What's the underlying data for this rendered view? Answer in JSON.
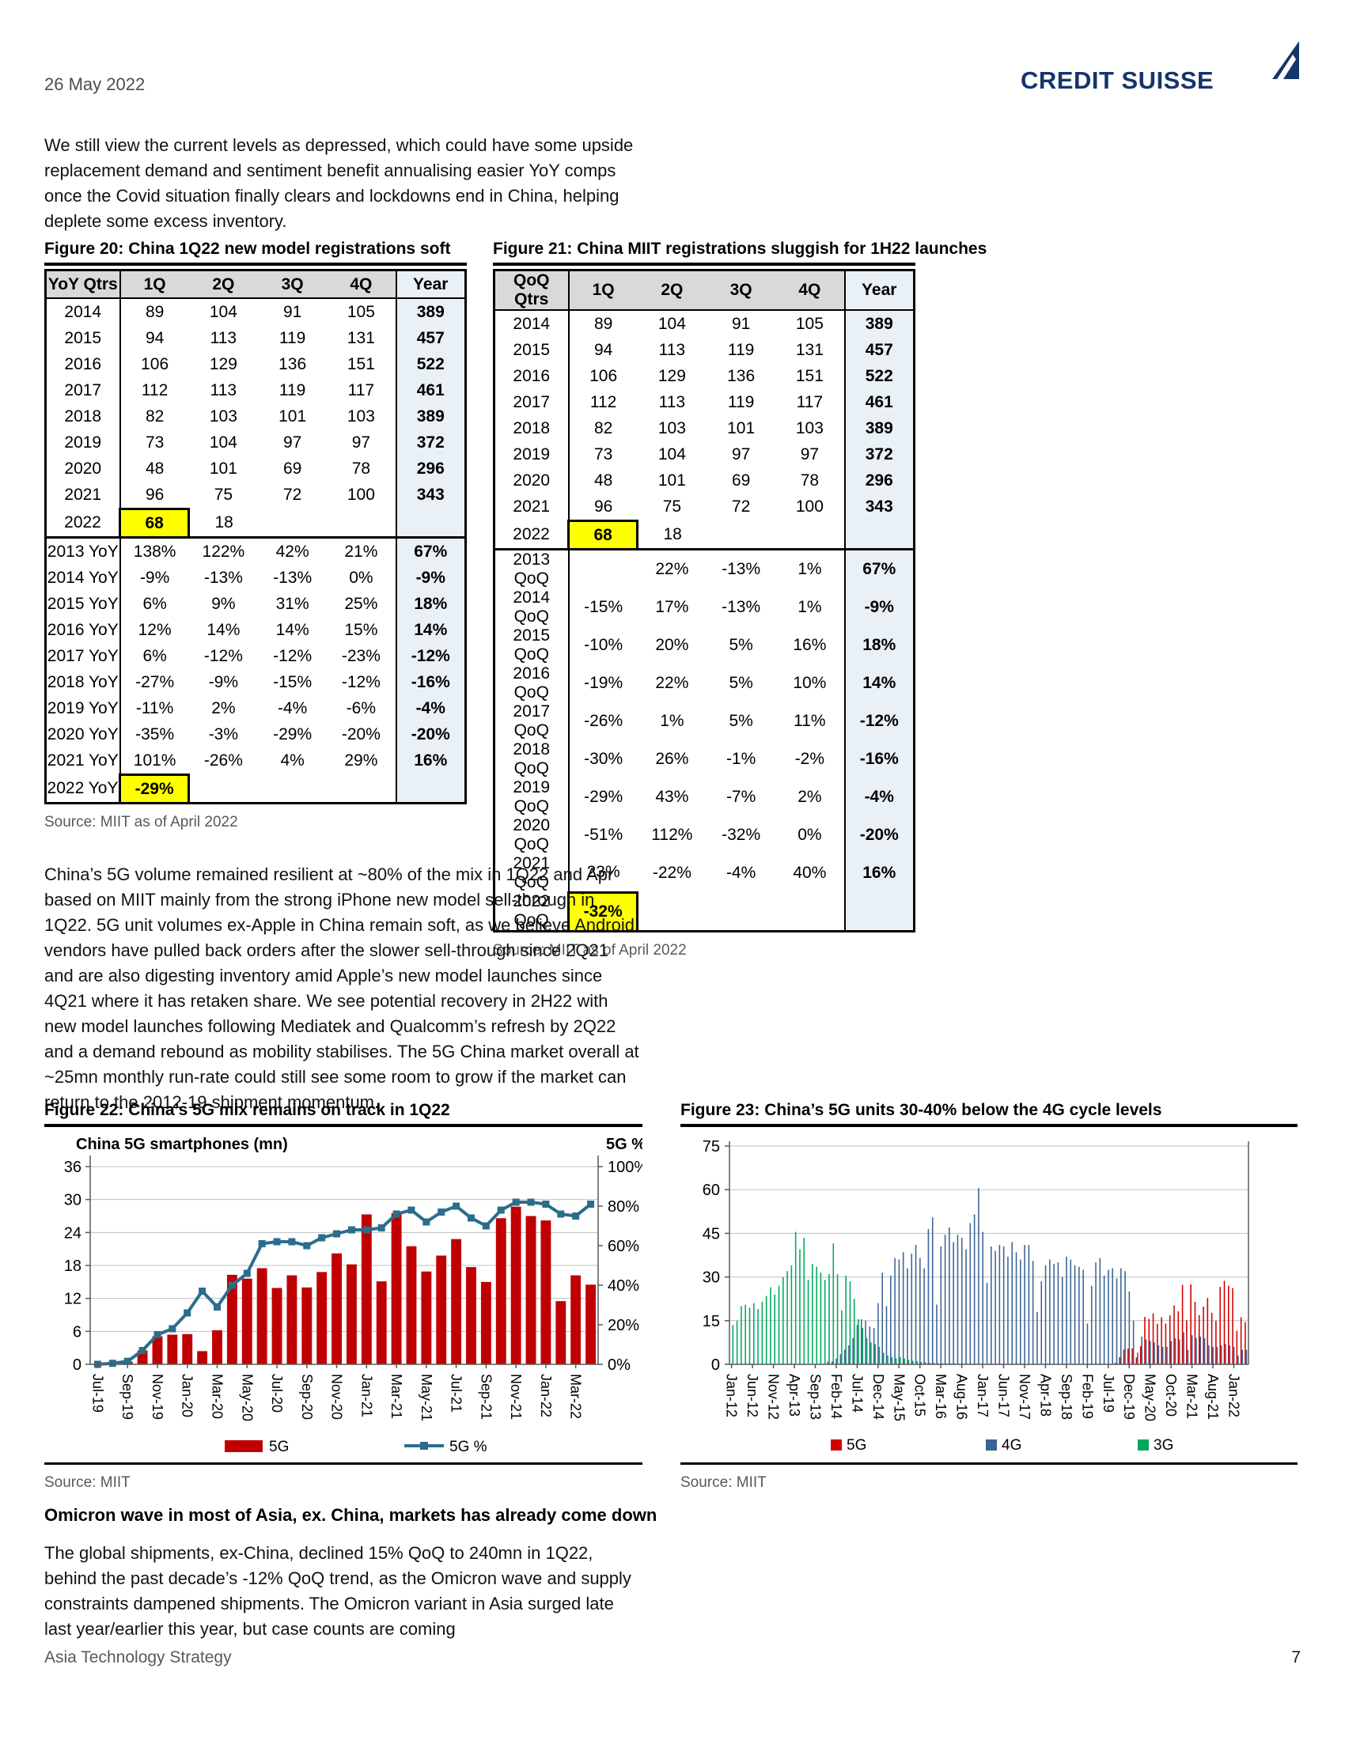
{
  "page": {
    "date": "26 May 2022",
    "logo": "CREDIT SUISSE",
    "intro_paragraph": "We still view the current levels as depressed, which could have some upside replacement demand and sentiment benefit annualising easier YoY comps once the Covid situation finally clears and lockdowns end in China, helping deplete some excess inventory.",
    "body_paragraph": "China’s 5G volume remained resilient at ~80% of the mix in 1Q22 and Apr based on MIIT mainly from the strong iPhone new model sell-through in 1Q22. 5G unit volumes ex-Apple in China remain soft, as we believe Android vendors have pulled back orders after the slower sell-through since 2Q21 and are also digesting inventory amid Apple’s new model launches since 4Q21 where it has retaken share. We see potential recovery in 2H22 with new model launches following Mediatek and Qualcomm’s refresh by 2Q22 and a demand rebound as mobility stabilises. The 5G China market overall at ~25mn monthly run-rate could still see some room to grow if the market can return to the 2012-19 shipment momentum.",
    "section_heading": "Omicron wave in most of Asia, ex. China, markets has already come down",
    "bottom_paragraph": "The global shipments, ex-China, declined 15% QoQ to 240mn in 1Q22, behind the past decade’s -12% QoQ trend, as the Omicron wave and supply constraints dampened shipments. The Omicron variant in Asia surged late last year/earlier this year, but case counts are coming",
    "footer_left": "Asia Technology Strategy",
    "footer_page": "7"
  },
  "figure20": {
    "title": "Figure 20: China 1Q22 new model registrations soft",
    "source": "Source: MIIT as of April 2022",
    "columns": [
      "YoY Qtrs",
      "1Q",
      "2Q",
      "3Q",
      "4Q",
      "Year"
    ],
    "rows": [
      [
        "2014",
        "89",
        "104",
        "91",
        "105",
        "389"
      ],
      [
        "2015",
        "94",
        "113",
        "119",
        "131",
        "457"
      ],
      [
        "2016",
        "106",
        "129",
        "136",
        "151",
        "522"
      ],
      [
        "2017",
        "112",
        "113",
        "119",
        "117",
        "461"
      ],
      [
        "2018",
        "82",
        "103",
        "101",
        "103",
        "389"
      ],
      [
        "2019",
        "73",
        "104",
        "97",
        "97",
        "372"
      ],
      [
        "2020",
        "48",
        "101",
        "69",
        "78",
        "296"
      ],
      [
        "2021",
        "96",
        "75",
        "72",
        "100",
        "343"
      ],
      [
        "2022",
        "68",
        "18",
        "",
        "",
        ""
      ]
    ],
    "pct_rows": [
      [
        "2013 YoY",
        "138%",
        "122%",
        "42%",
        "21%",
        "67%"
      ],
      [
        "2014 YoY",
        "-9%",
        "-13%",
        "-13%",
        "0%",
        "-9%"
      ],
      [
        "2015 YoY",
        "6%",
        "9%",
        "31%",
        "25%",
        "18%"
      ],
      [
        "2016 YoY",
        "12%",
        "14%",
        "14%",
        "15%",
        "14%"
      ],
      [
        "2017 YoY",
        "6%",
        "-12%",
        "-12%",
        "-23%",
        "-12%"
      ],
      [
        "2018 YoY",
        "-27%",
        "-9%",
        "-15%",
        "-12%",
        "-16%"
      ],
      [
        "2019 YoY",
        "-11%",
        "2%",
        "-4%",
        "-6%",
        "-4%"
      ],
      [
        "2020 YoY",
        "-35%",
        "-3%",
        "-29%",
        "-20%",
        "-20%"
      ],
      [
        "2021 YoY",
        "101%",
        "-26%",
        "4%",
        "29%",
        "16%"
      ],
      [
        "2022 YoY",
        "-29%",
        "",
        "",
        "",
        ""
      ]
    ],
    "highlights": [
      [
        "2022",
        1
      ],
      [
        "2022 YoY",
        1
      ]
    ]
  },
  "figure21": {
    "title": "Figure 21: China MIIT registrations sluggish for 1H22 launches",
    "source": "Source: MIIT as of April 2022",
    "columns": [
      "QoQ Qtrs",
      "1Q",
      "2Q",
      "3Q",
      "4Q",
      "Year"
    ],
    "rows": [
      [
        "2014",
        "89",
        "104",
        "91",
        "105",
        "389"
      ],
      [
        "2015",
        "94",
        "113",
        "119",
        "131",
        "457"
      ],
      [
        "2016",
        "106",
        "129",
        "136",
        "151",
        "522"
      ],
      [
        "2017",
        "112",
        "113",
        "119",
        "117",
        "461"
      ],
      [
        "2018",
        "82",
        "103",
        "101",
        "103",
        "389"
      ],
      [
        "2019",
        "73",
        "104",
        "97",
        "97",
        "372"
      ],
      [
        "2020",
        "48",
        "101",
        "69",
        "78",
        "296"
      ],
      [
        "2021",
        "96",
        "75",
        "72",
        "100",
        "343"
      ],
      [
        "2022",
        "68",
        "18",
        "",
        "",
        ""
      ]
    ],
    "pct_rows": [
      [
        "2013 QoQ",
        "",
        "22%",
        "-13%",
        "1%",
        "67%"
      ],
      [
        "2014 QoQ",
        "-15%",
        "17%",
        "-13%",
        "1%",
        "-9%"
      ],
      [
        "2015 QoQ",
        "-10%",
        "20%",
        "5%",
        "16%",
        "18%"
      ],
      [
        "2016 QoQ",
        "-19%",
        "22%",
        "5%",
        "10%",
        "14%"
      ],
      [
        "2017 QoQ",
        "-26%",
        "1%",
        "5%",
        "11%",
        "-12%"
      ],
      [
        "2018 QoQ",
        "-30%",
        "26%",
        "-1%",
        "-2%",
        "-16%"
      ],
      [
        "2019 QoQ",
        "-29%",
        "43%",
        "-7%",
        "2%",
        "-4%"
      ],
      [
        "2020 QoQ",
        "-51%",
        "112%",
        "-32%",
        "0%",
        "-20%"
      ],
      [
        "2021 QoQ",
        "23%",
        "-22%",
        "-4%",
        "40%",
        "16%"
      ],
      [
        "2022 QoQ",
        "-32%",
        "",
        "",
        "",
        ""
      ]
    ],
    "highlights": [
      [
        "2022",
        1
      ],
      [
        "2022 QoQ",
        1
      ]
    ]
  },
  "figure22": {
    "title": "Figure 22: China’s 5G mix remains on track in 1Q22",
    "source": "Source: MIIT",
    "chart_data": {
      "type": "combo-bar-line",
      "inner_title": "China 5G smartphones (mn)",
      "right_axis_title": "5G %",
      "tick_every": 2,
      "x_tick_labels": [
        "Jul-19",
        "Sep-19",
        "Nov-19",
        "Jan-20",
        "Mar-20",
        "May-20",
        "Jul-20",
        "Sep-20",
        "Nov-20",
        "Jan-21",
        "Mar-21",
        "May-21",
        "Jul-21",
        "Sep-21",
        "Nov-21",
        "Jan-22",
        "Mar-22"
      ],
      "y_left": {
        "ticks": [
          0,
          6,
          12,
          18,
          24,
          30,
          36
        ],
        "max": 36
      },
      "y_right": {
        "ticks": [
          "0%",
          "20%",
          "40%",
          "60%",
          "80%",
          "100%"
        ],
        "max": 100
      },
      "bar_series": {
        "name": "5G",
        "color": "#c00000",
        "values": [
          0,
          0.1,
          0.5,
          2.5,
          5.1,
          5.4,
          5.5,
          2.4,
          6.2,
          16.3,
          15.6,
          17.5,
          13.9,
          16.2,
          14,
          16.8,
          20.2,
          18.2,
          27.3,
          15.1,
          27.5,
          21.5,
          16.9,
          19.8,
          22.8,
          17.7,
          15,
          26.6,
          28.7,
          27,
          26.2,
          11.5,
          16.2,
          14.5
        ]
      },
      "line_series": {
        "name": "5G %",
        "color": "#2b6d8d",
        "values": [
          0,
          0.5,
          1.5,
          7,
          15,
          18,
          26,
          37,
          29,
          40,
          46,
          61,
          62,
          62,
          60,
          64,
          66,
          68,
          68,
          69,
          76,
          78,
          72,
          77,
          80,
          74,
          70,
          78,
          82,
          82,
          81,
          76,
          75,
          81
        ]
      }
    }
  },
  "figure23": {
    "title": "Figure 23: China’s 5G units 30-40% below the 4G cycle levels",
    "source": "Source: MIIT",
    "chart_data": {
      "type": "bar-clustered",
      "n_months": 124,
      "tick_every": 5,
      "x_tick_labels": [
        "Jan-12",
        "Jun-12",
        "Nov-12",
        "Apr-13",
        "Sep-13",
        "Feb-14",
        "Jul-14",
        "Dec-14",
        "May-15",
        "Oct-15",
        "Mar-16",
        "Aug-16",
        "Jan-17",
        "Jun-17",
        "Nov-17",
        "Apr-18",
        "Sep-18",
        "Feb-19",
        "Jul-19",
        "Dec-19",
        "May-20",
        "Oct-20",
        "Mar-21",
        "Aug-21",
        "Jan-22"
      ],
      "y": {
        "ticks": [
          0,
          15,
          30,
          45,
          60,
          75
        ],
        "max": 75
      },
      "series": [
        {
          "name": "5G",
          "color": "#d10000",
          "values": [
            0,
            0,
            0,
            0,
            0,
            0,
            0,
            0,
            0,
            0,
            0,
            0,
            0,
            0,
            0,
            0,
            0,
            0,
            0,
            0,
            0,
            0,
            0,
            0,
            0,
            0,
            0,
            0,
            0,
            0,
            0,
            0,
            0,
            0,
            0,
            0,
            0,
            0,
            0,
            0,
            0,
            0,
            0,
            0,
            0,
            0,
            0,
            0,
            0,
            0,
            0,
            0,
            0,
            0,
            0,
            0,
            0,
            0,
            0,
            0,
            0,
            0,
            0,
            0,
            0,
            0,
            0,
            0,
            0,
            0,
            0,
            0,
            0,
            0,
            0,
            0,
            0,
            0,
            0,
            0,
            0,
            0,
            0,
            0,
            0,
            0,
            0,
            0,
            0,
            0,
            0,
            0.1,
            0.5,
            2.5,
            5.1,
            5.4,
            5.5,
            2.4,
            6.2,
            16.3,
            15.6,
            17.5,
            13.9,
            16.2,
            14,
            16.8,
            20.2,
            18.2,
            27.3,
            15.1,
            27.5,
            21.5,
            16.9,
            19.8,
            22.8,
            17.7,
            15,
            26.6,
            28.7,
            27,
            26.2,
            11.5,
            16.2,
            14.5
          ]
        },
        {
          "name": "4G",
          "color": "#3b6394",
          "values": [
            0,
            0,
            0,
            0,
            0,
            0,
            0,
            0,
            0,
            0,
            0,
            0,
            0,
            0,
            0,
            0,
            0,
            0,
            0,
            0,
            0,
            0,
            0,
            1,
            1,
            2,
            3.5,
            5,
            6.5,
            9,
            13.5,
            15.5,
            15,
            13,
            12.5,
            21,
            31.5,
            20,
            30.5,
            36.5,
            36,
            38.5,
            33,
            38,
            41,
            36.5,
            33,
            46.5,
            50.5,
            20.5,
            40.5,
            44.5,
            47,
            42,
            44.5,
            43.5,
            39.5,
            48.5,
            51.5,
            60.5,
            45.5,
            28,
            40.5,
            39,
            41,
            40.5,
            37,
            42,
            38.5,
            36,
            41,
            41,
            35.5,
            18,
            28.5,
            34,
            36,
            34.5,
            35,
            30,
            37,
            36,
            34,
            33.5,
            32.5,
            14,
            27,
            35,
            36.5,
            30.5,
            32.5,
            33,
            29.5,
            33,
            32,
            25,
            15,
            4,
            9.5,
            8.5,
            8,
            7.5,
            6.5,
            6,
            6,
            8,
            9,
            8.5,
            11,
            5,
            10,
            9,
            9.5,
            9,
            6.5,
            6,
            6,
            6.5,
            7,
            6.5,
            6,
            3,
            5,
            5
          ]
        },
        {
          "name": "3G",
          "color": "#00a85b",
          "values": [
            13.5,
            15,
            20,
            20.5,
            19.5,
            21,
            19,
            21.5,
            23.5,
            26.5,
            24,
            27,
            30,
            32,
            34,
            45.5,
            39.5,
            43.5,
            29,
            34.5,
            33.5,
            31.5,
            29,
            31,
            41.5,
            31,
            18.5,
            30.5,
            28.5,
            22.5,
            15.5,
            12.5,
            9,
            7.5,
            7,
            6,
            4,
            3,
            2.5,
            2,
            2.5,
            2,
            1.5,
            1.2,
            1,
            0.8,
            0.7,
            0.6,
            0.5,
            0.4,
            0.4,
            0.3,
            0.3,
            0.3,
            0.2,
            0.2,
            0.2,
            0.2,
            0.1,
            0.1,
            0,
            0,
            0,
            0,
            0,
            0,
            0,
            0,
            0,
            0,
            0,
            0,
            0,
            0,
            0,
            0,
            0,
            0,
            0,
            0,
            0,
            0,
            0,
            0,
            0,
            0,
            0,
            0,
            0,
            0,
            0,
            0,
            0,
            0,
            0,
            0,
            0,
            0,
            0,
            0,
            0,
            0,
            0,
            0,
            0,
            0,
            0,
            0,
            0,
            0,
            0,
            0,
            0,
            0,
            0,
            0,
            0,
            0,
            0,
            0,
            0,
            0,
            0,
            0
          ]
        }
      ]
    }
  },
  "colors": {
    "highlight_yellow": "#ffff00",
    "table_header_bg": "#d9d9d9",
    "year_col_bg": "#e9f1f6",
    "logo_navy": "#15356b"
  }
}
